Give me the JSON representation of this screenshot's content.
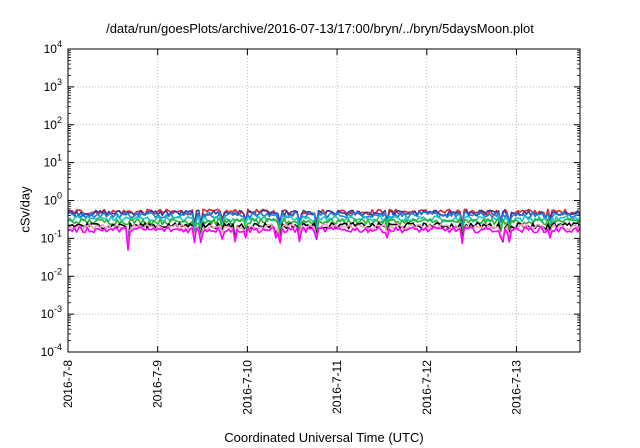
{
  "chart_data": {
    "type": "line",
    "title": "/data/run/goesPlots/archive/2016-07-13/17:00/bryn/../bryn/5daysMoon.plot",
    "xlabel": "Coordinated Universal Time (UTC)",
    "ylabel": "cSv/day",
    "yscale": "log",
    "ylim": [
      0.0001,
      10000
    ],
    "y_ticks": [
      {
        "base": "10",
        "exp": "-4"
      },
      {
        "base": "10",
        "exp": "-3"
      },
      {
        "base": "10",
        "exp": "-2"
      },
      {
        "base": "10",
        "exp": "-1"
      },
      {
        "base": "10",
        "exp": "0"
      },
      {
        "base": "10",
        "exp": "1"
      },
      {
        "base": "10",
        "exp": "2"
      },
      {
        "base": "10",
        "exp": "3"
      },
      {
        "base": "10",
        "exp": "4"
      }
    ],
    "x_range_days": [
      "2016-07-08",
      "2016-07-13T17:00"
    ],
    "x_tick_labels": [
      "2016-7-8",
      "2016-7-9",
      "2016-7-10",
      "2016-7-11",
      "2016-7-12",
      "2016-7-13"
    ],
    "grid": true,
    "series": [
      {
        "color": "#e8202a",
        "level": 0.5
      },
      {
        "color": "#3b3b9a",
        "level": 0.47
      },
      {
        "color": "#1e7fe0",
        "level": 0.42
      },
      {
        "color": "#18c9c0",
        "level": 0.33
      },
      {
        "color": "#2ab52a",
        "level": 0.28
      },
      {
        "color": "#000000",
        "level": 0.22
      },
      {
        "color": "#f0a0c0",
        "level": 0.2
      },
      {
        "color": "#ff00ff",
        "level": 0.17
      }
    ]
  }
}
